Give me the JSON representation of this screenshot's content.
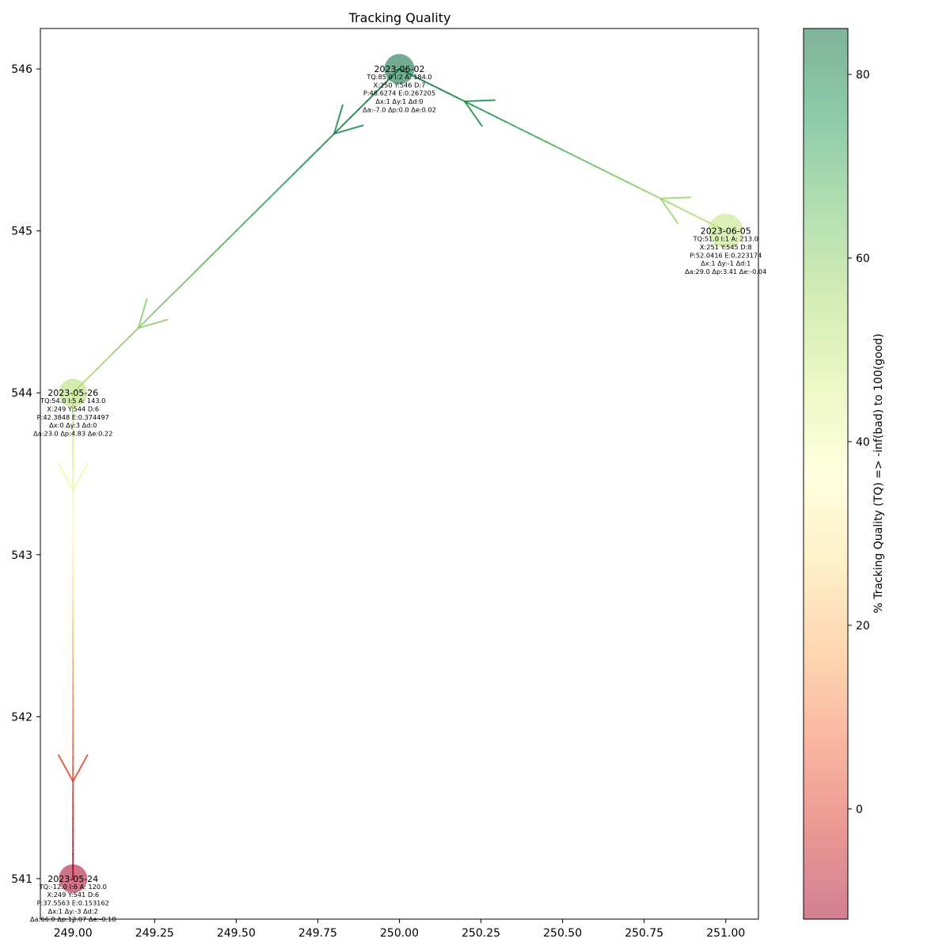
{
  "chart_data": {
    "type": "scatter",
    "title": "Tracking Quality",
    "xlabel": "",
    "ylabel": "",
    "xlim": [
      248.9,
      251.1
    ],
    "ylim": [
      540.75,
      546.25
    ],
    "xticks": [
      249.0,
      249.25,
      249.5,
      249.75,
      250.0,
      250.25,
      250.5,
      250.75,
      251.0
    ],
    "xtick_labels": [
      "249.00",
      "249.25",
      "249.50",
      "249.75",
      "250.00",
      "250.25",
      "250.50",
      "250.75",
      "251.00"
    ],
    "yticks": [
      541,
      542,
      543,
      544,
      545,
      546
    ],
    "ytick_labels": [
      "541",
      "542",
      "543",
      "544",
      "545",
      "546"
    ],
    "grid": false,
    "colorbar": {
      "label": "% Tracking Quality (TQ) => -inf(bad) to 100(good)",
      "range": [
        -12,
        85
      ],
      "ticks": [
        0,
        20,
        40,
        60,
        80
      ],
      "tick_labels": [
        "0",
        "20",
        "40",
        "60",
        "80"
      ],
      "colormap": [
        "#a50026",
        "#d73027",
        "#f46d43",
        "#fdae61",
        "#fee090",
        "#ffffbf",
        "#d9ef8b",
        "#a6d96a",
        "#66bd63",
        "#1a9850",
        "#006837"
      ],
      "alpha": 0.5
    },
    "points": [
      {
        "date": "2023-05-24",
        "x": 249,
        "y": 541,
        "tq": -12,
        "size": 18,
        "info": [
          "TQ:-12.0 I:6 A: 120.0",
          "X:249 Y:541 D:6",
          "P:37.5563 E:0.153162",
          "Δx:1 Δy:-3 Δd:2",
          "Δa:66.0 Δp:13.07 Δe:-0.18"
        ]
      },
      {
        "date": "2023-05-26",
        "x": 249,
        "y": 544,
        "tq": 54,
        "size": 18,
        "info": [
          "TQ:54.0 I:5 A: 143.0",
          "X:249 Y:544 D:6",
          "P:42.3848 E:0.374497",
          "Δx:0 Δy:3 Δd:0",
          "Δa:23.0 Δp:4.83 Δe:0.22"
        ]
      },
      {
        "date": "2023-06-02",
        "x": 250,
        "y": 546,
        "tq": 85,
        "size": 19,
        "info": [
          "TQ:85.0 I:2 A: 184.0",
          "X:250 Y:546 D:7",
          "P:48.6274 E:0.267205",
          "Δx:1 Δy:1 Δd:0",
          "Δa:-7.0 Δp:0.0 Δe:0.02"
        ]
      },
      {
        "date": "2023-06-05",
        "x": 251,
        "y": 545,
        "tq": 51,
        "size": 22,
        "info": [
          "TQ:51.0 I:1 A: 213.0",
          "X:251 Y:545 D:8",
          "P:52.0416 E:0.223174",
          "Δx:1 Δy:-1 Δd:1",
          "Δa:29.0 Δp:3.41 Δe:-0.04"
        ]
      }
    ],
    "arrows": [
      {
        "from": 1,
        "to": 0
      },
      {
        "from": 2,
        "to": 1
      },
      {
        "from": 3,
        "to": 2
      }
    ]
  }
}
